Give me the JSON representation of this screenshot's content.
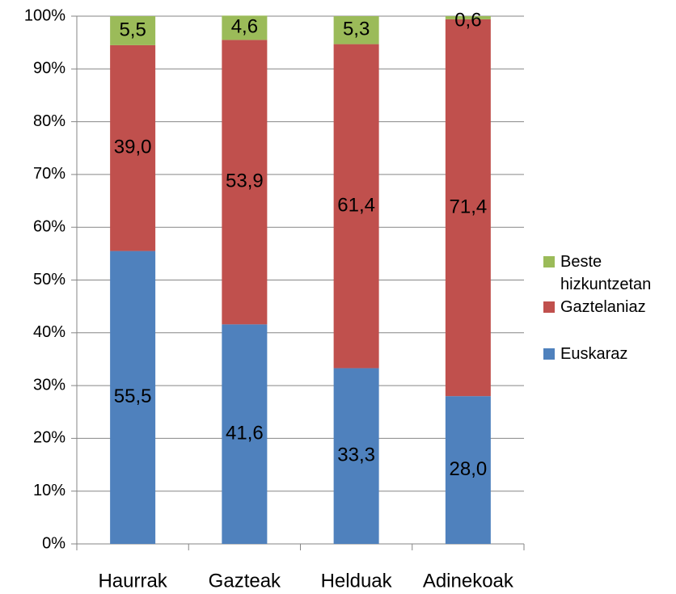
{
  "chart_data": {
    "type": "stacked_bar",
    "categories": [
      "Haurrak",
      "Gazteak",
      "Helduak",
      "Adinekoak"
    ],
    "series": [
      {
        "name": "Euskaraz",
        "color": "#4f81bd",
        "values": [
          55.5,
          41.6,
          33.3,
          28.0
        ],
        "value_labels": [
          "55,5",
          "41,6",
          "33,3",
          "28,0"
        ]
      },
      {
        "name": "Gaztelaniaz",
        "color": "#c0504d",
        "values": [
          39.0,
          53.9,
          61.4,
          71.4
        ],
        "value_labels": [
          "39,0",
          "53,9",
          "61,4",
          "71,4"
        ]
      },
      {
        "name": "Beste hizkuntzetan",
        "color": "#9bbb59",
        "values": [
          5.5,
          4.6,
          5.3,
          0.6
        ],
        "value_labels": [
          "5,5",
          "4,6",
          "5,3",
          "0,6"
        ]
      }
    ],
    "ylim": [
      0,
      100
    ],
    "yticks": [
      {
        "value": 0,
        "label": "0%"
      },
      {
        "value": 10,
        "label": "10%"
      },
      {
        "value": 20,
        "label": "20%"
      },
      {
        "value": 30,
        "label": "30%"
      },
      {
        "value": 40,
        "label": "40%"
      },
      {
        "value": 50,
        "label": "50%"
      },
      {
        "value": 60,
        "label": "60%"
      },
      {
        "value": 70,
        "label": "70%"
      },
      {
        "value": 80,
        "label": "80%"
      },
      {
        "value": 90,
        "label": "90%"
      },
      {
        "value": 100,
        "label": "100%"
      }
    ],
    "grid": true,
    "legend": "right"
  }
}
